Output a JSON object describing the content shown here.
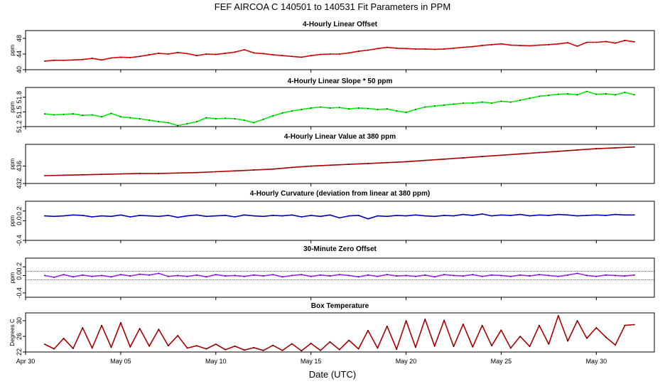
{
  "title": "FEF   AIRCOA C   140501 to 140531   Fit Parameters in PPM",
  "xlabel": "Date (UTC)",
  "x_ticks": [
    "Apr 30",
    "May 05",
    "May 10",
    "May 15",
    "May 20",
    "May 25",
    "May 30"
  ],
  "chart_data": [
    {
      "type": "line",
      "title": "4-Hourly Linear Offset",
      "ylabel": "ppm",
      "ylim": [
        40,
        50
      ],
      "yticks": [
        "40",
        "44",
        "48"
      ],
      "color": "#dd0000",
      "series": [
        {
          "x": [
            1.0,
            1.5,
            2.0,
            2.5,
            3.0,
            3.5,
            4.0,
            4.5,
            5.0,
            5.5,
            6.0,
            6.5,
            7.0,
            7.5,
            8.0,
            8.5,
            9.0,
            9.5,
            10.0,
            10.5,
            11.0,
            11.5,
            12.0,
            12.5,
            13.0,
            13.5,
            14.0,
            14.5,
            15.0,
            15.5,
            16.0,
            16.5,
            17.0,
            17.5,
            18.0,
            18.5,
            19.0,
            19.5,
            20.0,
            20.5,
            21.0,
            21.5,
            22.0,
            22.5,
            23.0,
            23.5,
            24.0,
            24.5,
            25.0,
            25.5,
            26.0,
            26.5,
            27.0,
            27.5,
            28.0,
            28.5,
            29.0,
            29.5,
            30.0,
            30.5,
            31.0,
            31.5,
            32.0
          ],
          "y": [
            42.2,
            42.4,
            42.4,
            42.5,
            42.6,
            42.9,
            42.5,
            43.0,
            43.2,
            43.1,
            43.4,
            43.8,
            44.2,
            44.0,
            44.4,
            44.1,
            43.6,
            44.0,
            43.9,
            44.2,
            44.5,
            45.1,
            44.3,
            44.1,
            43.8,
            43.6,
            43.4,
            43.2,
            43.6,
            43.9,
            44.0,
            44.0,
            44.3,
            44.7,
            45.0,
            45.4,
            45.7,
            45.5,
            45.4,
            45.3,
            45.3,
            45.2,
            45.3,
            45.5,
            45.7,
            45.9,
            46.2,
            46.4,
            46.6,
            46.3,
            46.2,
            46.1,
            46.3,
            46.4,
            46.6,
            46.9,
            46.0,
            47.0,
            47.0,
            47.2,
            46.8,
            47.5,
            47.1
          ]
        }
      ]
    },
    {
      "type": "line",
      "title": "4-Hourly Linear Slope * 50 ppm",
      "ylabel": "ppm",
      "ylim": [
        51.2,
        52.0
      ],
      "yticks": [
        "51.2",
        "51.5",
        "51.8"
      ],
      "color": "#00ee00",
      "series": [
        {
          "x": [
            1.0,
            1.5,
            2.0,
            2.5,
            3.0,
            3.5,
            4.0,
            4.5,
            5.0,
            5.5,
            6.0,
            6.5,
            7.0,
            7.5,
            8.0,
            8.5,
            9.0,
            9.5,
            10.0,
            10.5,
            11.0,
            11.5,
            12.0,
            12.5,
            13.0,
            13.5,
            14.0,
            14.5,
            15.0,
            15.5,
            16.0,
            16.5,
            17.0,
            17.5,
            18.0,
            18.5,
            19.0,
            19.5,
            20.0,
            20.5,
            21.0,
            21.5,
            22.0,
            22.5,
            23.0,
            23.5,
            24.0,
            24.5,
            25.0,
            25.5,
            26.0,
            26.5,
            27.0,
            27.5,
            28.0,
            28.5,
            29.0,
            29.5,
            30.0,
            30.5,
            31.0,
            31.5,
            32.0
          ],
          "y": [
            51.46,
            51.44,
            51.45,
            51.46,
            51.43,
            51.44,
            51.4,
            51.47,
            51.4,
            51.38,
            51.36,
            51.33,
            51.3,
            51.28,
            51.22,
            51.26,
            51.3,
            51.38,
            51.36,
            51.37,
            51.36,
            51.33,
            51.28,
            51.35,
            51.42,
            51.48,
            51.52,
            51.55,
            51.58,
            51.6,
            51.58,
            51.59,
            51.56,
            51.58,
            51.57,
            51.55,
            51.56,
            51.52,
            51.49,
            51.55,
            51.6,
            51.62,
            51.64,
            51.66,
            51.68,
            51.68,
            51.7,
            51.68,
            51.72,
            51.7,
            51.74,
            51.78,
            51.82,
            51.84,
            51.86,
            51.87,
            51.85,
            51.92,
            51.86,
            51.87,
            51.85,
            51.9,
            51.85
          ]
        }
      ]
    },
    {
      "type": "line",
      "title": "4-Hourly Linear Value at 380 ppm",
      "ylabel": "ppm",
      "ylim": [
        432,
        441
      ],
      "yticks": [
        "432",
        "436"
      ],
      "color": "#aa0000",
      "series": [
        {
          "x": [
            1.0,
            2.0,
            3.0,
            4.0,
            5.0,
            6.0,
            7.0,
            8.0,
            9.0,
            10.0,
            11.0,
            12.0,
            13.0,
            14.0,
            15.0,
            16.0,
            17.0,
            18.0,
            19.0,
            20.0,
            21.0,
            22.0,
            23.0,
            24.0,
            25.0,
            26.0,
            27.0,
            28.0,
            29.0,
            30.0,
            31.0,
            32.0
          ],
          "y": [
            433.8,
            433.9,
            434.0,
            434.1,
            434.2,
            434.3,
            434.3,
            434.4,
            434.5,
            434.7,
            434.9,
            435.1,
            435.3,
            435.7,
            436.0,
            436.2,
            436.4,
            436.6,
            436.8,
            437.0,
            437.3,
            437.6,
            437.9,
            438.2,
            438.5,
            438.8,
            439.1,
            439.4,
            439.7,
            440.0,
            440.2,
            440.4
          ]
        }
      ]
    },
    {
      "type": "line",
      "title": "4-Hourly Curvature (deviation from linear at 380 ppm)",
      "ylabel": "ppm",
      "ylim": [
        -0.4,
        0.4
      ],
      "yticks": [
        "-0.4",
        "0.0",
        "0.2"
      ],
      "color": "#0000cc",
      "series": [
        {
          "x": [
            1.0,
            1.5,
            2.0,
            2.5,
            3.0,
            3.5,
            4.0,
            4.5,
            5.0,
            5.5,
            6.0,
            6.5,
            7.0,
            7.5,
            8.0,
            8.5,
            9.0,
            9.5,
            10.0,
            10.5,
            11.0,
            11.5,
            12.0,
            12.5,
            13.0,
            13.5,
            14.0,
            14.5,
            15.0,
            15.5,
            16.0,
            16.5,
            17.0,
            17.5,
            18.0,
            18.5,
            19.0,
            19.5,
            20.0,
            20.5,
            21.0,
            21.5,
            22.0,
            22.5,
            23.0,
            23.5,
            24.0,
            24.5,
            25.0,
            25.5,
            26.0,
            26.5,
            27.0,
            27.5,
            28.0,
            28.5,
            29.0,
            29.5,
            30.0,
            30.5,
            31.0,
            31.5,
            32.0
          ],
          "y": [
            0.1,
            0.09,
            0.1,
            0.12,
            0.11,
            0.08,
            0.1,
            0.09,
            0.12,
            0.08,
            0.11,
            0.1,
            0.09,
            0.11,
            0.07,
            0.1,
            0.12,
            0.09,
            0.1,
            0.11,
            0.08,
            0.12,
            0.1,
            0.09,
            0.11,
            0.1,
            0.12,
            0.08,
            0.11,
            0.09,
            0.12,
            0.06,
            0.1,
            0.11,
            0.04,
            0.1,
            0.09,
            0.11,
            0.1,
            0.12,
            0.1,
            0.09,
            0.11,
            0.1,
            0.13,
            0.11,
            0.14,
            0.1,
            0.12,
            0.11,
            0.13,
            0.1,
            0.12,
            0.11,
            0.13,
            0.12,
            0.1,
            0.11,
            0.12,
            0.11,
            0.13,
            0.12,
            0.12
          ]
        }
      ]
    },
    {
      "type": "line",
      "title": "30-Minute Zero Offset",
      "ylabel": "ppm",
      "ylim": [
        -0.5,
        0.4
      ],
      "yticks": [
        "-0.4",
        "0.0",
        "0.2"
      ],
      "color": "#9922ff",
      "ref_lines": [
        0.1,
        -0.1
      ],
      "series": [
        {
          "x": [
            1.0,
            1.5,
            2.0,
            2.5,
            3.0,
            3.5,
            4.0,
            4.5,
            5.0,
            5.5,
            6.0,
            6.5,
            7.0,
            7.5,
            8.0,
            8.5,
            9.0,
            9.5,
            10.0,
            10.5,
            11.0,
            11.5,
            12.0,
            12.5,
            13.0,
            13.5,
            14.0,
            14.5,
            15.0,
            15.5,
            16.0,
            16.5,
            17.0,
            17.5,
            18.0,
            18.5,
            19.0,
            19.5,
            20.0,
            20.5,
            21.0,
            21.5,
            22.0,
            22.5,
            23.0,
            23.5,
            24.0,
            24.5,
            25.0,
            25.5,
            26.0,
            26.5,
            27.0,
            27.5,
            28.0,
            28.5,
            29.0,
            29.5,
            30.0,
            30.5,
            31.0,
            31.5,
            32.0
          ],
          "y": [
            0.0,
            -0.04,
            0.02,
            -0.03,
            0.01,
            -0.02,
            0.0,
            -0.03,
            0.02,
            -0.01,
            0.03,
            0.01,
            0.05,
            -0.02,
            0.0,
            -0.02,
            0.01,
            -0.03,
            0.02,
            -0.01,
            0.0,
            -0.02,
            0.01,
            -0.01,
            0.02,
            -0.03,
            0.0,
            0.02,
            -0.02,
            0.01,
            -0.01,
            0.02,
            0.0,
            -0.03,
            0.01,
            -0.02,
            0.02,
            -0.01,
            0.0,
            -0.02,
            0.01,
            -0.03,
            0.02,
            0.0,
            -0.01,
            0.02,
            -0.02,
            0.01,
            0.0,
            -0.02,
            0.01,
            -0.01,
            0.02,
            0.0,
            -0.02,
            0.01,
            0.05,
            0.0,
            -0.02,
            0.01,
            0.0,
            -0.01,
            0.01
          ]
        }
      ]
    },
    {
      "type": "line",
      "title": "Box Temperature",
      "ylabel": "Degrees C",
      "ylim": [
        22,
        32
      ],
      "yticks": [
        "22",
        "26",
        "30"
      ],
      "color": "#aa0000",
      "series": [
        {
          "x": [
            1.0,
            1.5,
            2.0,
            2.5,
            3.0,
            3.5,
            4.0,
            4.5,
            5.0,
            5.5,
            6.0,
            6.5,
            7.0,
            7.5,
            8.0,
            8.5,
            9.0,
            9.5,
            10.0,
            10.5,
            11.0,
            11.5,
            12.0,
            12.5,
            13.0,
            13.5,
            14.0,
            14.5,
            15.0,
            15.5,
            16.0,
            16.5,
            17.0,
            17.5,
            18.0,
            18.5,
            19.0,
            19.5,
            20.0,
            20.5,
            21.0,
            21.5,
            22.0,
            22.5,
            23.0,
            23.5,
            24.0,
            24.5,
            25.0,
            25.5,
            26.0,
            26.5,
            27.0,
            27.5,
            28.0,
            28.5,
            29.0,
            29.5,
            30.0,
            30.5,
            31.0,
            31.5,
            32.0
          ],
          "y": [
            24.0,
            22.8,
            25.5,
            22.9,
            28.2,
            23.0,
            28.8,
            23.2,
            29.5,
            23.3,
            28.0,
            23.5,
            27.8,
            23.6,
            26.2,
            23.0,
            23.6,
            22.8,
            24.0,
            22.6,
            23.5,
            22.5,
            23.1,
            22.4,
            23.7,
            22.4,
            24.1,
            22.3,
            24.2,
            22.4,
            24.6,
            22.6,
            25.0,
            22.8,
            27.5,
            23.0,
            28.6,
            22.7,
            30.0,
            23.2,
            30.4,
            23.5,
            30.1,
            23.4,
            29.1,
            23.3,
            28.8,
            23.6,
            27.6,
            23.0,
            26.0,
            23.4,
            28.8,
            24.0,
            31.3,
            24.8,
            30.0,
            25.5,
            28.2,
            25.8,
            23.8,
            28.8,
            29.0
          ]
        }
      ]
    }
  ]
}
